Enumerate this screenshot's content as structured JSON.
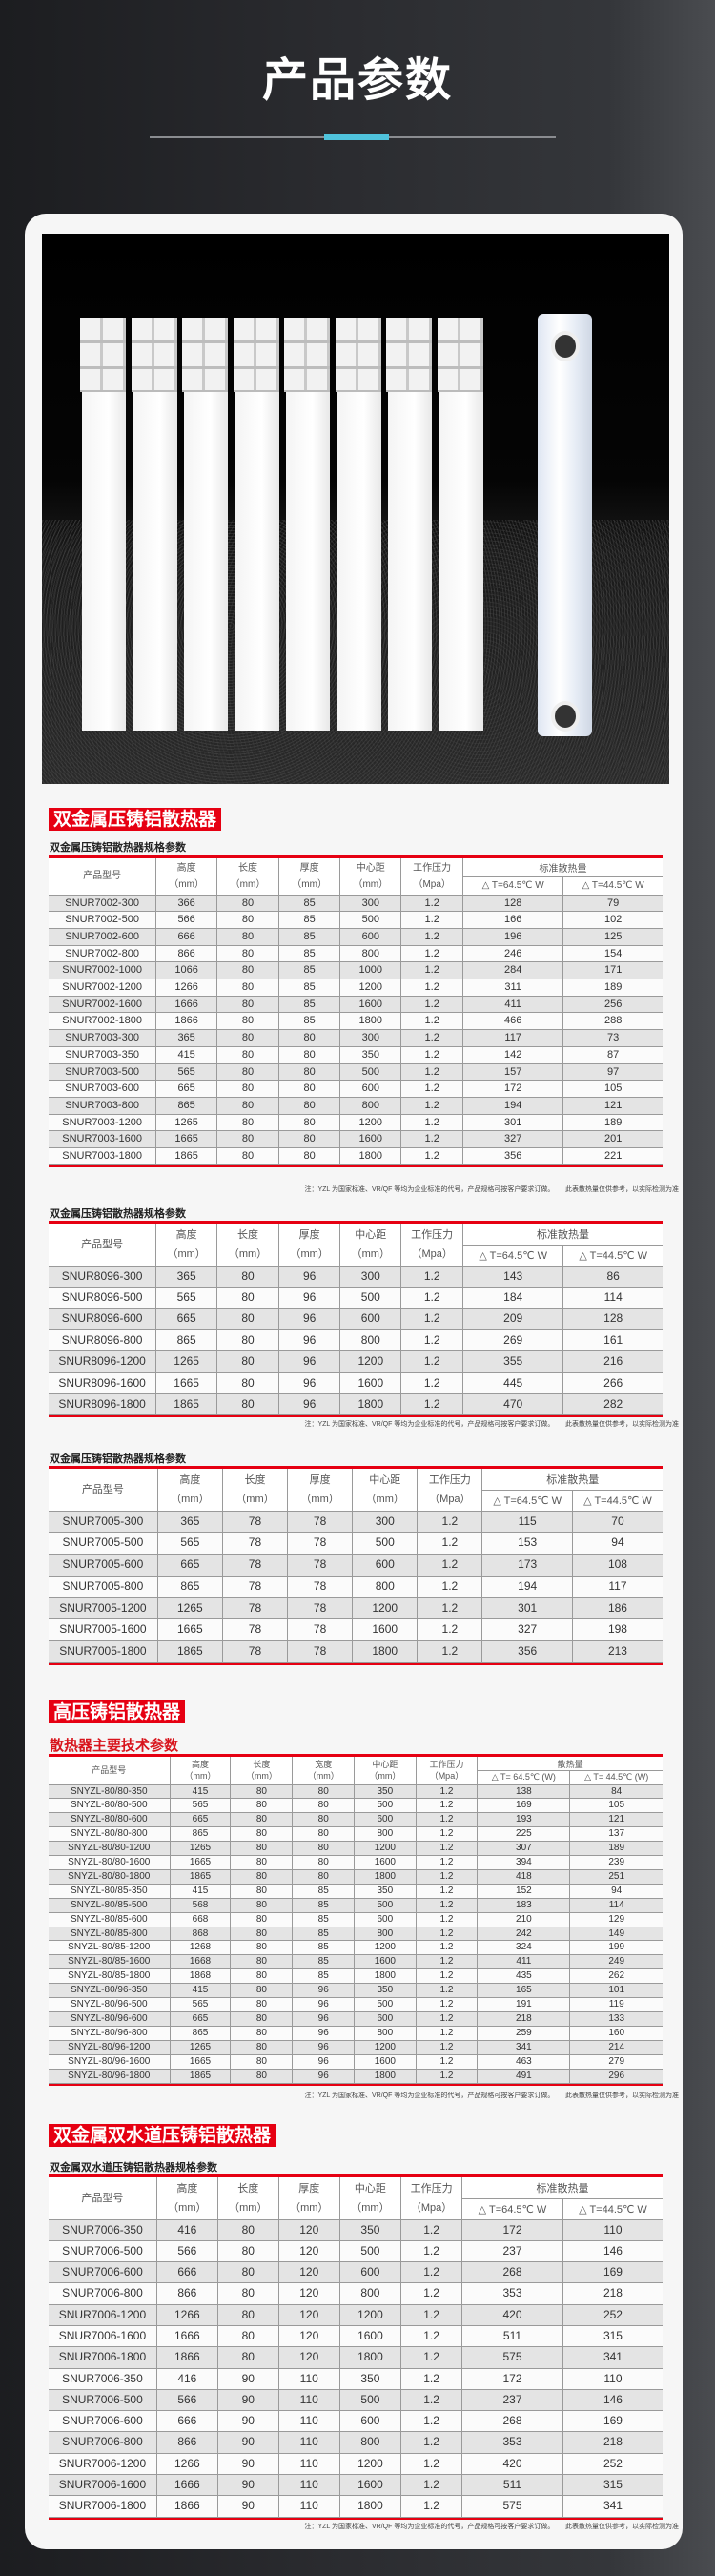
{
  "hero": {
    "title": "产品参数",
    "accent_color": "#4fc3dc"
  },
  "brand_red": "#e60012",
  "note": "注：YZL 为国家标准、VR/QF 等均为企业标准的代号，产品规格可按客户要求订做。      此表散热量仅供参考，以实际检测为准",
  "sections": [
    {
      "title": "双金属压铸铝散热器"
    },
    {
      "title": "高压铸铝散热器"
    },
    {
      "title": "双金属双水道压铸铝散热器"
    }
  ],
  "tables": [
    {
      "subtitle": "双金属压铸铝散热器规格参数",
      "columns": [
        "产品型号",
        "高度\n（mm）",
        "长度\n（mm）",
        "厚度\n（mm）",
        "中心距\n（mm）",
        "工作压力\n（Mpa）"
      ],
      "heat_header": "标准散热量",
      "heat_columns": [
        "△ T=64.5℃ W",
        "△ T=44.5℃ W"
      ],
      "rows": [
        [
          "SNUR7002-300",
          "366",
          "80",
          "85",
          "300",
          "1.2",
          "128",
          "79"
        ],
        [
          "SNUR7002-500",
          "566",
          "80",
          "85",
          "500",
          "1.2",
          "166",
          "102"
        ],
        [
          "SNUR7002-600",
          "666",
          "80",
          "85",
          "600",
          "1.2",
          "196",
          "125"
        ],
        [
          "SNUR7002-800",
          "866",
          "80",
          "85",
          "800",
          "1.2",
          "246",
          "154"
        ],
        [
          "SNUR7002-1000",
          "1066",
          "80",
          "85",
          "1000",
          "1.2",
          "284",
          "171"
        ],
        [
          "SNUR7002-1200",
          "1266",
          "80",
          "85",
          "1200",
          "1.2",
          "311",
          "189"
        ],
        [
          "SNUR7002-1600",
          "1666",
          "80",
          "85",
          "1600",
          "1.2",
          "411",
          "256"
        ],
        [
          "SNUR7002-1800",
          "1866",
          "80",
          "85",
          "1800",
          "1.2",
          "466",
          "288"
        ],
        [
          "SNUR7003-300",
          "365",
          "80",
          "80",
          "300",
          "1.2",
          "117",
          "73"
        ],
        [
          "SNUR7003-350",
          "415",
          "80",
          "80",
          "350",
          "1.2",
          "142",
          "87"
        ],
        [
          "SNUR7003-500",
          "565",
          "80",
          "80",
          "500",
          "1.2",
          "157",
          "97"
        ],
        [
          "SNUR7003-600",
          "665",
          "80",
          "80",
          "600",
          "1.2",
          "172",
          "105"
        ],
        [
          "SNUR7003-800",
          "865",
          "80",
          "80",
          "800",
          "1.2",
          "194",
          "121"
        ],
        [
          "SNUR7003-1200",
          "1265",
          "80",
          "80",
          "1200",
          "1.2",
          "301",
          "189"
        ],
        [
          "SNUR7003-1600",
          "1665",
          "80",
          "80",
          "1600",
          "1.2",
          "327",
          "201"
        ],
        [
          "SNUR7003-1800",
          "1865",
          "80",
          "80",
          "1800",
          "1.2",
          "356",
          "221"
        ]
      ]
    },
    {
      "subtitle": "双金属压铸铝散热器规格参数",
      "columns": [
        "产品型号",
        "高度\n（mm）",
        "长度\n（mm）",
        "厚度\n（mm）",
        "中心距\n（mm）",
        "工作压力\n（Mpa）"
      ],
      "heat_header": "标准散热量",
      "heat_columns": [
        "△ T=64.5℃ W",
        "△ T=44.5℃ W"
      ],
      "rows": [
        [
          "SNUR8096-300",
          "365",
          "80",
          "96",
          "300",
          "1.2",
          "143",
          "86"
        ],
        [
          "SNUR8096-500",
          "565",
          "80",
          "96",
          "500",
          "1.2",
          "184",
          "114"
        ],
        [
          "SNUR8096-600",
          "665",
          "80",
          "96",
          "600",
          "1.2",
          "209",
          "128"
        ],
        [
          "SNUR8096-800",
          "865",
          "80",
          "96",
          "800",
          "1.2",
          "269",
          "161"
        ],
        [
          "SNUR8096-1200",
          "1265",
          "80",
          "96",
          "1200",
          "1.2",
          "355",
          "216"
        ],
        [
          "SNUR8096-1600",
          "1665",
          "80",
          "96",
          "1600",
          "1.2",
          "445",
          "266"
        ],
        [
          "SNUR8096-1800",
          "1865",
          "80",
          "96",
          "1800",
          "1.2",
          "470",
          "282"
        ]
      ]
    },
    {
      "subtitle": "双金属压铸铝散热器规格参数",
      "columns": [
        "产品型号",
        "高度\n（mm）",
        "长度\n（mm）",
        "厚度\n（mm）",
        "中心距\n（mm）",
        "工作压力\n（Mpa）"
      ],
      "heat_header": "标准散热量",
      "heat_columns": [
        "△ T=64.5℃ W",
        "△ T=44.5℃ W"
      ],
      "rows": [
        [
          "SNUR7005-300",
          "365",
          "78",
          "78",
          "300",
          "1.2",
          "115",
          "70"
        ],
        [
          "SNUR7005-500",
          "565",
          "78",
          "78",
          "500",
          "1.2",
          "153",
          "94"
        ],
        [
          "SNUR7005-600",
          "665",
          "78",
          "78",
          "600",
          "1.2",
          "173",
          "108"
        ],
        [
          "SNUR7005-800",
          "865",
          "78",
          "78",
          "800",
          "1.2",
          "194",
          "117"
        ],
        [
          "SNUR7005-1200",
          "1265",
          "78",
          "78",
          "1200",
          "1.2",
          "301",
          "186"
        ],
        [
          "SNUR7005-1600",
          "1665",
          "78",
          "78",
          "1600",
          "1.2",
          "327",
          "198"
        ],
        [
          "SNUR7005-1800",
          "1865",
          "78",
          "78",
          "1800",
          "1.2",
          "356",
          "213"
        ]
      ]
    },
    {
      "subtitle": "散热器主要技术参数",
      "columns": [
        "产品型号",
        "高度\n（mm）",
        "长度\n（mm）",
        "宽度\n（mm）",
        "中心距\n（mm）",
        "工作压力\n（Mpa）"
      ],
      "heat_header": "散热量",
      "heat_columns": [
        "△ T= 64.5℃ (W)",
        "△ T= 44.5℃ (W)"
      ],
      "rows": [
        [
          "SNYZL-80/80-350",
          "415",
          "80",
          "80",
          "350",
          "1.2",
          "138",
          "84"
        ],
        [
          "SNYZL-80/80-500",
          "565",
          "80",
          "80",
          "500",
          "1.2",
          "169",
          "105"
        ],
        [
          "SNYZL-80/80-600",
          "665",
          "80",
          "80",
          "600",
          "1.2",
          "193",
          "121"
        ],
        [
          "SNYZL-80/80-800",
          "865",
          "80",
          "80",
          "800",
          "1.2",
          "225",
          "137"
        ],
        [
          "SNYZL-80/80-1200",
          "1265",
          "80",
          "80",
          "1200",
          "1.2",
          "307",
          "189"
        ],
        [
          "SNYZL-80/80-1600",
          "1665",
          "80",
          "80",
          "1600",
          "1.2",
          "394",
          "239"
        ],
        [
          "SNYZL-80/80-1800",
          "1865",
          "80",
          "80",
          "1800",
          "1.2",
          "418",
          "251"
        ],
        [
          "SNYZL-80/85-350",
          "415",
          "80",
          "85",
          "350",
          "1.2",
          "152",
          "94"
        ],
        [
          "SNYZL-80/85-500",
          "568",
          "80",
          "85",
          "500",
          "1.2",
          "183",
          "114"
        ],
        [
          "SNYZL-80/85-600",
          "668",
          "80",
          "85",
          "600",
          "1.2",
          "210",
          "129"
        ],
        [
          "SNYZL-80/85-800",
          "868",
          "80",
          "85",
          "800",
          "1.2",
          "242",
          "149"
        ],
        [
          "SNYZL-80/85-1200",
          "1268",
          "80",
          "85",
          "1200",
          "1.2",
          "324",
          "199"
        ],
        [
          "SNYZL-80/85-1600",
          "1668",
          "80",
          "85",
          "1600",
          "1.2",
          "411",
          "249"
        ],
        [
          "SNYZL-80/85-1800",
          "1868",
          "80",
          "85",
          "1800",
          "1.2",
          "435",
          "262"
        ],
        [
          "SNYZL-80/96-350",
          "415",
          "80",
          "96",
          "350",
          "1.2",
          "165",
          "101"
        ],
        [
          "SNYZL-80/96-500",
          "565",
          "80",
          "96",
          "500",
          "1.2",
          "191",
          "119"
        ],
        [
          "SNYZL-80/96-600",
          "665",
          "80",
          "96",
          "600",
          "1.2",
          "218",
          "133"
        ],
        [
          "SNYZL-80/96-800",
          "865",
          "80",
          "96",
          "800",
          "1.2",
          "259",
          "160"
        ],
        [
          "SNYZL-80/96-1200",
          "1265",
          "80",
          "96",
          "1200",
          "1.2",
          "341",
          "214"
        ],
        [
          "SNYZL-80/96-1600",
          "1665",
          "80",
          "96",
          "1600",
          "1.2",
          "463",
          "279"
        ],
        [
          "SNYZL-80/96-1800",
          "1865",
          "80",
          "96",
          "1800",
          "1.2",
          "491",
          "296"
        ]
      ]
    },
    {
      "subtitle": "双金属双水道压铸铝散热器规格参数",
      "columns": [
        "产品型号",
        "高度\n（mm）",
        "长度\n（mm）",
        "厚度\n（mm）",
        "中心距\n（mm）",
        "工作压力\n（Mpa）"
      ],
      "heat_header": "标准散热量",
      "heat_columns": [
        "△ T=64.5℃ W",
        "△ T=44.5℃ W"
      ],
      "rows": [
        [
          "SNUR7006-350",
          "416",
          "80",
          "120",
          "350",
          "1.2",
          "172",
          "110"
        ],
        [
          "SNUR7006-500",
          "566",
          "80",
          "120",
          "500",
          "1.2",
          "237",
          "146"
        ],
        [
          "SNUR7006-600",
          "666",
          "80",
          "120",
          "600",
          "1.2",
          "268",
          "169"
        ],
        [
          "SNUR7006-800",
          "866",
          "80",
          "120",
          "800",
          "1.2",
          "353",
          "218"
        ],
        [
          "SNUR7006-1200",
          "1266",
          "80",
          "120",
          "1200",
          "1.2",
          "420",
          "252"
        ],
        [
          "SNUR7006-1600",
          "1666",
          "80",
          "120",
          "1600",
          "1.2",
          "511",
          "315"
        ],
        [
          "SNUR7006-1800",
          "1866",
          "80",
          "120",
          "1800",
          "1.2",
          "575",
          "341"
        ],
        [
          "SNUR7006-350",
          "416",
          "90",
          "110",
          "350",
          "1.2",
          "172",
          "110"
        ],
        [
          "SNUR7006-500",
          "566",
          "90",
          "110",
          "500",
          "1.2",
          "237",
          "146"
        ],
        [
          "SNUR7006-600",
          "666",
          "90",
          "110",
          "600",
          "1.2",
          "268",
          "169"
        ],
        [
          "SNUR7006-800",
          "866",
          "90",
          "110",
          "800",
          "1.2",
          "353",
          "218"
        ],
        [
          "SNUR7006-1200",
          "1266",
          "90",
          "110",
          "1200",
          "1.2",
          "420",
          "252"
        ],
        [
          "SNUR7006-1600",
          "1666",
          "90",
          "110",
          "1600",
          "1.2",
          "511",
          "315"
        ],
        [
          "SNUR7006-1800",
          "1866",
          "90",
          "110",
          "1800",
          "1.2",
          "575",
          "341"
        ]
      ]
    }
  ]
}
